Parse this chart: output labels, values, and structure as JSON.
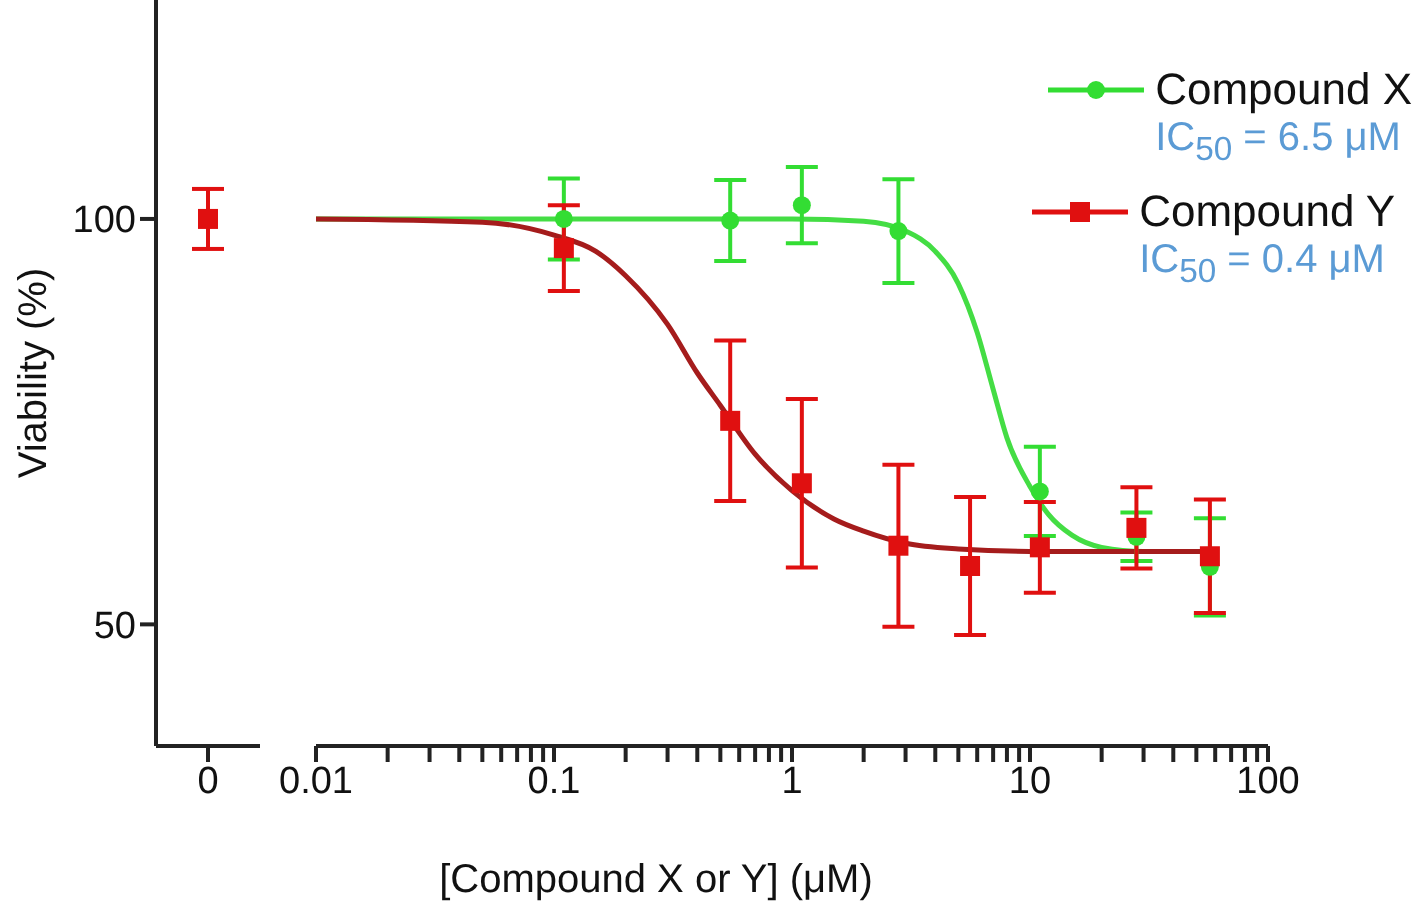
{
  "chart_data": [
    {
      "type": "scatter",
      "categories": [
        "0"
      ],
      "ylabel": "Viability (%)",
      "ylim": [
        35,
        127
      ],
      "yticks": [
        50,
        100
      ],
      "series": [
        {
          "color": "#e01010",
          "marker": "square",
          "values": [
            100
          ],
          "errors": [
            3.7
          ]
        }
      ]
    },
    {
      "type": "scatter",
      "xlabel": "[Compound X or Y] (μM)",
      "log": "x",
      "xlim": [
        0.01,
        100
      ],
      "ylim": [
        35,
        127
      ],
      "tick_labels": "x",
      "legend": "top right",
      "xticks": [
        0.01,
        {
          "value": 0.02,
          "label": null
        },
        {
          "value": 0.03,
          "label": null
        },
        {
          "value": 0.04,
          "label": null
        },
        {
          "value": 0.05,
          "label": null
        },
        {
          "value": 0.06,
          "label": null
        },
        {
          "value": 0.07,
          "label": null
        },
        {
          "value": 0.08,
          "label": null
        },
        {
          "value": 0.09,
          "label": null
        },
        0.1,
        {
          "value": 0.2,
          "label": null
        },
        {
          "value": 0.3,
          "label": null
        },
        {
          "value": 0.4,
          "label": null
        },
        {
          "value": 0.5,
          "label": null
        },
        {
          "value": 0.6,
          "label": null
        },
        {
          "value": 0.7,
          "label": null
        },
        {
          "value": 0.8,
          "label": null
        },
        {
          "value": 0.9,
          "label": null
        },
        1,
        {
          "value": 2,
          "label": null
        },
        {
          "value": 3,
          "label": null
        },
        {
          "value": 4,
          "label": null
        },
        {
          "value": 5,
          "label": null
        },
        {
          "value": 6,
          "label": null
        },
        {
          "value": 7,
          "label": null
        },
        {
          "value": 8,
          "label": null
        },
        {
          "value": 9,
          "label": null
        },
        10,
        {
          "value": 20,
          "label": null
        },
        {
          "value": 30,
          "label": null
        },
        {
          "value": 40,
          "label": null
        },
        {
          "value": 50,
          "label": null
        },
        {
          "value": 60,
          "label": null
        },
        {
          "value": 70,
          "label": null
        },
        {
          "value": 80,
          "label": null
        },
        {
          "value": 90,
          "label": null
        },
        100
      ],
      "annotations": [
        "IC$_{50}$ = 6.5 μM",
        "IC$_{50}$ = 0.4 μM"
      ],
      "series": [
        {
          "type": "line",
          "color": "#44dd44",
          "x": [
            0.01,
            1,
            2,
            3,
            4,
            5,
            6,
            7,
            8,
            10,
            12,
            15,
            20,
            30,
            60
          ],
          "values": [
            100,
            100,
            99.7,
            98.5,
            96,
            92,
            86,
            79,
            73,
            67,
            63.5,
            61,
            59.5,
            59,
            59
          ]
        },
        {
          "type": "line",
          "color": "#a51c1c",
          "x": [
            0.01,
            0.05,
            0.1,
            0.15,
            0.2,
            0.3,
            0.4,
            0.5,
            0.7,
            1,
            1.5,
            2,
            3,
            5,
            10,
            60
          ],
          "values": [
            100,
            99.6,
            98,
            96,
            93,
            87,
            81,
            77,
            71,
            66.5,
            63,
            61.5,
            60,
            59.3,
            59,
            59
          ]
        },
        {
          "name": "Compound X",
          "color": "#33dd33",
          "marker": "circle",
          "x": [
            0.11,
            0.55,
            1.1,
            2.8,
            5.6,
            11,
            28,
            57
          ],
          "values": [
            100,
            99.8,
            101.7,
            98.5,
            null,
            66.4,
            60.8,
            57.1
          ],
          "errors": [
            5,
            5,
            4.7,
            6.4,
            null,
            5.5,
            3,
            6
          ]
        },
        {
          "name": "Compound Y",
          "color": "#e01010",
          "marker": "square",
          "x": [
            0.11,
            0.55,
            1.1,
            2.8,
            5.6,
            11,
            28,
            57
          ],
          "values": [
            96.4,
            75.1,
            67.4,
            59.7,
            57.2,
            59.5,
            61.9,
            58.4
          ],
          "errors": [
            5.3,
            9.9,
            10.4,
            10,
            8.5,
            5.6,
            5,
            7
          ]
        }
      ]
    }
  ]
}
